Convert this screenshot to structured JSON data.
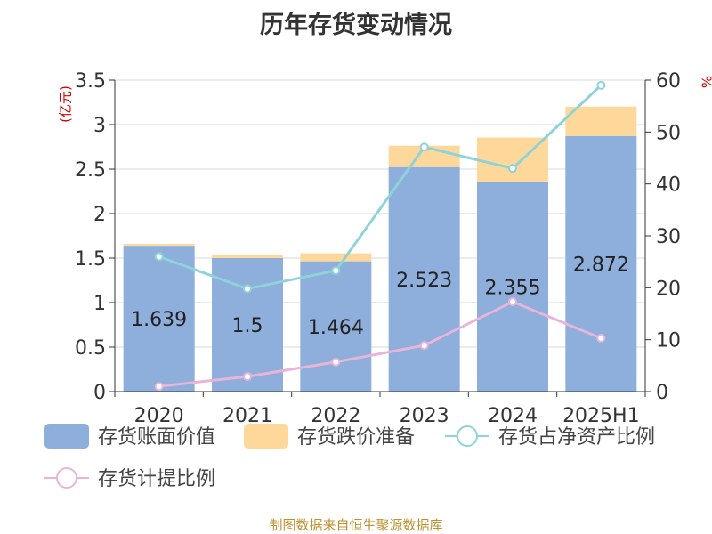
{
  "chart_data": {
    "type": "bar",
    "title": "历年存货变动情况",
    "categories": [
      "2020",
      "2021",
      "2022",
      "2023",
      "2024",
      "2025H1"
    ],
    "left_axis": {
      "label": "(亿元)",
      "ylim": [
        0,
        3.5
      ],
      "ticks": [
        "0",
        "0.5",
        "1",
        "1.5",
        "2",
        "2.5",
        "3",
        "3.5"
      ]
    },
    "right_axis": {
      "label": "%",
      "ylim": [
        0,
        60
      ],
      "ticks": [
        "0",
        "10",
        "20",
        "30",
        "40",
        "50",
        "60"
      ]
    },
    "series": [
      {
        "name": "存货账面价值",
        "kind": "bar",
        "axis": "left",
        "color": "#8eaedb",
        "values": [
          1.639,
          1.5,
          1.464,
          2.523,
          2.355,
          2.872
        ],
        "labels": [
          "1.639",
          "1.5",
          "1.464",
          "2.523",
          "2.355",
          "2.872"
        ]
      },
      {
        "name": "存货跌价准备",
        "kind": "bar",
        "axis": "left",
        "stacked": true,
        "color": "#fdd89a",
        "values": [
          0.02,
          0.04,
          0.09,
          0.24,
          0.5,
          0.33
        ]
      },
      {
        "name": "存货占净资产比例",
        "kind": "line",
        "axis": "right",
        "color": "#8fd3d8",
        "values": [
          26.0,
          19.8,
          23.3,
          47.1,
          43.0,
          59.0
        ]
      },
      {
        "name": "存货计提比例",
        "kind": "line",
        "axis": "right",
        "color": "#e8b4d8",
        "values": [
          1.0,
          2.9,
          5.7,
          8.9,
          17.3,
          10.3
        ]
      }
    ],
    "grid": true,
    "legend_position": "bottom"
  },
  "source": "制图数据来自恒生聚源数据库"
}
